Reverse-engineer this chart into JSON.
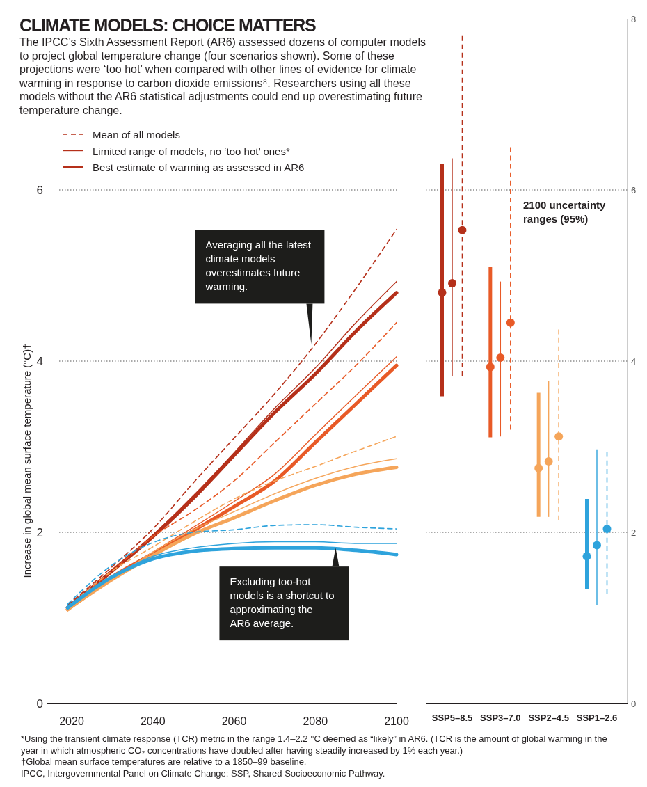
{
  "chart_data": [
    {
      "type": "line",
      "title": "CLIMATE MODELS: CHOICE MATTERS",
      "subtitle": "The IPCC’s Sixth Assessment Report (AR6) assessed dozens of computer models to project global temperature change (four scenarios shown). Some of these projections were ‘too hot’ when compared with other lines of evidence for climate warming in response to carbon dioxide emissions⁸. Researchers using all these models without the AR6 statistical adjustments could end up overestimating future temperature change.",
      "ylabel": "Increase in global mean surface temperature (°C)†",
      "x": [
        2019,
        2030,
        2040,
        2050,
        2060,
        2070,
        2080,
        2090,
        2100
      ],
      "xlim": [
        2014,
        2100
      ],
      "xticks": [
        2020,
        2040,
        2060,
        2080,
        2100
      ],
      "ylim": [
        0,
        6
      ],
      "yticks": [
        0,
        2,
        4,
        6
      ],
      "grid": "y",
      "legend": "top left",
      "series": [
        {
          "name": "Mean of all models",
          "color": "#b5301a",
          "line_style": "dashed",
          "values": [
            1.15,
            1.6,
            2.04,
            2.58,
            3.1,
            3.62,
            4.2,
            4.85,
            5.54
          ]
        },
        {
          "name": "Limited range of models, no ‘too hot’ ones*",
          "color": "#b5301a",
          "line_style": "solid",
          "values": [
            1.12,
            1.55,
            1.97,
            2.43,
            2.93,
            3.45,
            3.92,
            4.45,
            4.93
          ]
        },
        {
          "name": "Best estimate of warming as assessed in AR6",
          "color": "#b5301a",
          "line_style": "solid",
          "values": [
            1.12,
            1.55,
            1.95,
            2.4,
            2.9,
            3.4,
            3.85,
            4.35,
            4.8
          ]
        },
        {
          "color": "#e85a27",
          "line_style": "dashed",
          "values": [
            1.12,
            1.55,
            1.95,
            2.25,
            2.6,
            3.05,
            3.5,
            3.95,
            4.45
          ]
        },
        {
          "color": "#e85a27",
          "line_style": "solid",
          "values": [
            1.1,
            1.48,
            1.77,
            2.06,
            2.36,
            2.68,
            3.14,
            3.6,
            4.05
          ]
        },
        {
          "color": "#e85a27",
          "line_style": "solid",
          "values": [
            1.1,
            1.48,
            1.75,
            2.02,
            2.3,
            2.6,
            3.05,
            3.5,
            3.95
          ]
        },
        {
          "color": "#f5a55a",
          "line_style": "dashed",
          "values": [
            1.12,
            1.55,
            1.83,
            2.12,
            2.39,
            2.6,
            2.77,
            2.95,
            3.12
          ]
        },
        {
          "color": "#f5a55a",
          "line_style": "solid",
          "values": [
            1.08,
            1.45,
            1.77,
            2.03,
            2.24,
            2.45,
            2.63,
            2.77,
            2.86
          ]
        },
        {
          "color": "#f5a55a",
          "line_style": "solid",
          "values": [
            1.1,
            1.45,
            1.73,
            1.98,
            2.17,
            2.37,
            2.55,
            2.68,
            2.76
          ]
        },
        {
          "color": "#2ea3dc",
          "line_style": "dashed",
          "values": [
            1.16,
            1.62,
            1.88,
            2.0,
            2.03,
            2.08,
            2.09,
            2.06,
            2.04
          ]
        },
        {
          "color": "#2ea3dc",
          "line_style": "solid",
          "values": [
            1.1,
            1.48,
            1.72,
            1.82,
            1.87,
            1.89,
            1.89,
            1.87,
            1.87
          ]
        },
        {
          "color": "#2ea3dc",
          "line_style": "solid",
          "values": [
            1.12,
            1.48,
            1.69,
            1.78,
            1.81,
            1.82,
            1.82,
            1.79,
            1.74
          ]
        }
      ],
      "annotations": [
        {
          "text": "Averaging all the latest climate models overestimates future warming.",
          "x": 2079,
          "y": 4.2
        },
        {
          "text": "Excluding too-hot models is a shortcut to approximating the AR6 average.",
          "x": 2085,
          "y": 1.82
        },
        "*Using the transient climate response (TCR) metric in the range 1.4–2.2 °C deemed as “likely” in AR6. (TCR is the amount of global warming in the year in which atmospheric CO₂ concentrations have doubled after having steadily increased by 1% each year.)",
        "†Global mean surface temperatures are relative to a 1850–99 baseline.",
        "IPCC, Intergovernmental Panel on Climate Change; SSP, Shared Socioeconomic Pathway."
      ]
    },
    {
      "type": "scatter",
      "categories": [
        "SSP5–8.5",
        "SSP3–7.0",
        "SSP2–4.5",
        "SSP1–2.6"
      ],
      "ylim": [
        0,
        8
      ],
      "yticks": [
        0,
        2,
        4,
        6,
        8
      ],
      "grid": "y",
      "marker": "circle",
      "series": [
        {
          "line_style": "dashed",
          "colors": [
            "#b5301a",
            "#e85a27",
            "#f5a55a",
            "#2ea3dc"
          ],
          "values": [
            5.53,
            4.45,
            3.12,
            2.04
          ],
          "errors": [
            [
              3.83,
              7.8
            ],
            [
              3.2,
              6.5
            ],
            [
              2.14,
              4.37
            ],
            [
              1.28,
              2.94
            ]
          ]
        },
        {
          "line_style": "solid",
          "colors": [
            "#b5301a",
            "#e85a27",
            "#f5a55a",
            "#2ea3dc"
          ],
          "values": [
            4.91,
            4.04,
            2.83,
            1.85
          ],
          "errors": [
            [
              3.83,
              6.37
            ],
            [
              3.12,
              4.93
            ],
            [
              2.18,
              3.77
            ],
            [
              1.15,
              2.97
            ]
          ]
        },
        {
          "line_style": "solid",
          "colors": [
            "#b5301a",
            "#e85a27",
            "#f5a55a",
            "#2ea3dc"
          ],
          "values": [
            4.8,
            3.93,
            2.75,
            1.72
          ],
          "errors": [
            [
              3.59,
              6.3
            ],
            [
              3.11,
              5.1
            ],
            [
              2.18,
              3.63
            ],
            [
              1.34,
              2.39
            ]
          ]
        }
      ],
      "annotations": [
        "2100 uncertainty ranges (95%)"
      ]
    }
  ]
}
